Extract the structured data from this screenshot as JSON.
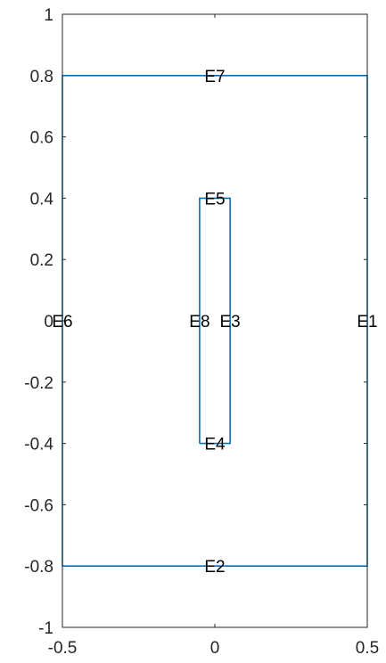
{
  "chart_data": {
    "type": "line",
    "title": "",
    "xlabel": "",
    "ylabel": "",
    "xlim": [
      -0.5,
      0.5
    ],
    "ylim": [
      -1,
      1
    ],
    "x_ticks": [
      -0.5,
      0,
      0.5
    ],
    "x_tick_labels": [
      "-0.5",
      "0",
      "0.5"
    ],
    "y_ticks": [
      -1,
      -0.8,
      -0.6,
      -0.4,
      -0.2,
      0,
      0.2,
      0.4,
      0.6,
      0.8,
      1
    ],
    "y_tick_labels": [
      "-1",
      "-0.8",
      "-0.6",
      "-0.4",
      "-0.2",
      "0",
      "0.2",
      "0.4",
      "0.6",
      "0.8",
      "1"
    ],
    "grid": false,
    "line_color": "#0072BD",
    "series": [
      {
        "x": [
          -0.5,
          0.5,
          0.5,
          -0.5,
          -0.5
        ],
        "y": [
          -0.8,
          -0.8,
          0.8,
          0.8,
          -0.8
        ]
      },
      {
        "x": [
          -0.05,
          0.05,
          0.05,
          -0.05,
          -0.05
        ],
        "y": [
          -0.4,
          -0.4,
          0.4,
          0.4,
          -0.4
        ]
      }
    ],
    "edge_labels": [
      {
        "text": "E1",
        "x": 0.5,
        "y": 0
      },
      {
        "text": "E2",
        "x": 0,
        "y": -0.8
      },
      {
        "text": "E3",
        "x": 0.05,
        "y": 0
      },
      {
        "text": "E4",
        "x": 0,
        "y": -0.4
      },
      {
        "text": "E5",
        "x": 0,
        "y": 0.4
      },
      {
        "text": "E6",
        "x": -0.5,
        "y": 0
      },
      {
        "text": "E7",
        "x": 0,
        "y": 0.8
      },
      {
        "text": "E8",
        "x": -0.05,
        "y": 0
      }
    ]
  }
}
